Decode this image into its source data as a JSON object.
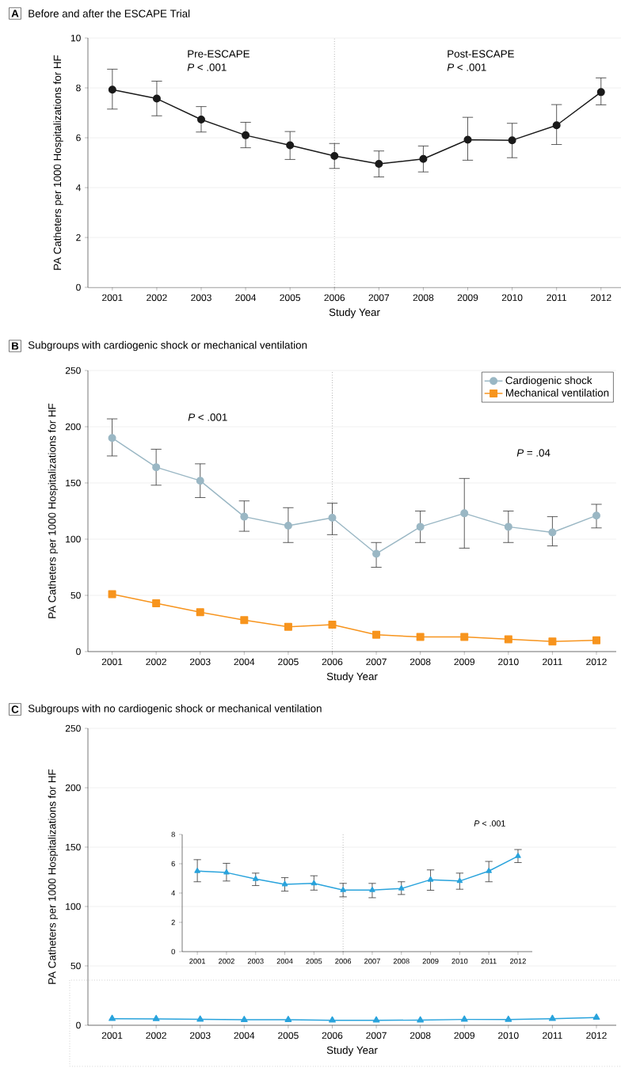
{
  "chart_data": [
    {
      "type": "line",
      "title": "Before and after the ESCAPE Trial",
      "xlabel": "Study Year",
      "ylabel": "PA Catheters per 1000 Hospitalizations for HF",
      "annotations": [
        "A",
        "Pre-ESCAPE",
        "*P* < .001",
        "Post-ESCAPE",
        "*P* < .001"
      ],
      "x": [
        2001,
        2002,
        2003,
        2004,
        2005,
        2006,
        2007,
        2008,
        2009,
        2010,
        2011,
        2012
      ],
      "xlim": [
        2000.45,
        2012.45
      ],
      "xticks": [
        2001,
        2002,
        2003,
        2004,
        2005,
        2006,
        2007,
        2008,
        2009,
        2010,
        2011,
        2012
      ],
      "ylim": [
        0,
        10
      ],
      "yticks": [
        0,
        2,
        4,
        6,
        8,
        10
      ],
      "grid": "y",
      "ref_lines": [
        {
          "axis": "x",
          "value": 2006,
          "line_style": "dotted"
        }
      ],
      "series": [
        {
          "color": "#1a1a1a",
          "marker": "circle",
          "values": [
            7.93,
            7.57,
            6.73,
            6.1,
            5.7,
            5.27,
            4.95,
            5.15,
            5.92,
            5.9,
            6.5,
            7.83
          ],
          "errors": [
            [
              7.15,
              8.75
            ],
            [
              6.88,
              8.27
            ],
            [
              6.23,
              7.25
            ],
            [
              5.6,
              6.62
            ],
            [
              5.13,
              6.25
            ],
            [
              4.77,
              5.77
            ],
            [
              4.43,
              5.47
            ],
            [
              4.63,
              5.67
            ],
            [
              5.1,
              6.82
            ],
            [
              5.2,
              6.58
            ],
            [
              5.73,
              7.33
            ],
            [
              7.32,
              8.4
            ]
          ]
        }
      ]
    },
    {
      "type": "line",
      "title": "Subgroups with cardiogenic shock or mechanical ventilation",
      "xlabel": "Study Year",
      "ylabel": "PA Catheters per 1000 Hospitalizations for HF",
      "annotations": [
        "B",
        "*P* < .001",
        "*P* = .04"
      ],
      "x": [
        2001,
        2002,
        2003,
        2004,
        2005,
        2006,
        2007,
        2008,
        2009,
        2010,
        2011,
        2012
      ],
      "xlim": [
        2000.45,
        2012.45
      ],
      "xticks": [
        2001,
        2002,
        2003,
        2004,
        2005,
        2006,
        2007,
        2008,
        2009,
        2010,
        2011,
        2012
      ],
      "ylim": [
        0,
        250
      ],
      "yticks": [
        0,
        50,
        100,
        150,
        200,
        250
      ],
      "grid": "y",
      "legend": "top right",
      "ref_lines": [
        {
          "axis": "x",
          "value": 2006,
          "line_style": "dotted"
        }
      ],
      "series": [
        {
          "name": "Cardiogenic shock",
          "color": "#9ab7c4",
          "marker": "circle",
          "values": [
            190,
            164,
            152,
            120,
            112,
            119,
            87,
            111,
            123,
            111,
            106,
            121
          ],
          "errors": [
            [
              174,
              207
            ],
            [
              148,
              180
            ],
            [
              137,
              167
            ],
            [
              107,
              134
            ],
            [
              97,
              128
            ],
            [
              104,
              132
            ],
            [
              75,
              97
            ],
            [
              97,
              125
            ],
            [
              92,
              154
            ],
            [
              97,
              125
            ],
            [
              94,
              120
            ],
            [
              110,
              131
            ]
          ]
        },
        {
          "name": "Mechanical ventilation",
          "color": "#f7941d",
          "marker": "square",
          "values": [
            51,
            43,
            35,
            28,
            22,
            24,
            15,
            13,
            13,
            11,
            9,
            10
          ]
        }
      ]
    },
    {
      "type": "line",
      "title": "Subgroups with no cardiogenic shock or mechanical ventilation",
      "xlabel": "Study Year",
      "ylabel": "PA Catheters per 1000 Hospitalizations for HF",
      "annotations": [
        "C"
      ],
      "x": [
        2001,
        2002,
        2003,
        2004,
        2005,
        2006,
        2007,
        2008,
        2009,
        2010,
        2011,
        2012
      ],
      "xlim": [
        2000.45,
        2012.45
      ],
      "xticks": [
        2001,
        2002,
        2003,
        2004,
        2005,
        2006,
        2007,
        2008,
        2009,
        2010,
        2011,
        2012
      ],
      "ylim": [
        0,
        250
      ],
      "yticks": [
        0,
        50,
        100,
        150,
        200,
        250
      ],
      "grid": "y",
      "series": [
        {
          "color": "#29a3dc",
          "marker": "triangle",
          "values": [
            5.5,
            5.4,
            4.96,
            4.6,
            4.66,
            4.2,
            4.2,
            4.31,
            4.91,
            4.82,
            5.5,
            6.52
          ]
        }
      ]
    },
    {
      "type": "line",
      "annotations": [
        "*P* < .001"
      ],
      "x": [
        2001,
        2002,
        2003,
        2004,
        2005,
        2006,
        2007,
        2008,
        2009,
        2010,
        2011,
        2012
      ],
      "xlim": [
        2000.48,
        2012.49
      ],
      "xticks": [
        2001,
        2002,
        2003,
        2004,
        2005,
        2006,
        2007,
        2008,
        2009,
        2010,
        2011,
        2012
      ],
      "ylim": [
        0,
        8
      ],
      "yticks": [
        0,
        2,
        4,
        6,
        8
      ],
      "ref_lines": [
        {
          "axis": "x",
          "value": 2006,
          "line_style": "dotted"
        }
      ],
      "series": [
        {
          "color": "#29a3dc",
          "marker": "triangle",
          "values": [
            5.5,
            5.4,
            4.96,
            4.6,
            4.66,
            4.2,
            4.2,
            4.31,
            4.91,
            4.82,
            5.5,
            6.52
          ],
          "errors": [
            [
              4.77,
              6.28
            ],
            [
              4.82,
              6.03
            ],
            [
              4.51,
              5.36
            ],
            [
              4.13,
              5.05
            ],
            [
              4.2,
              5.18
            ],
            [
              3.74,
              4.66
            ],
            [
              3.68,
              4.66
            ],
            [
              3.9,
              4.77
            ],
            [
              4.19,
              5.58
            ],
            [
              4.26,
              5.36
            ],
            [
              4.77,
              6.16
            ],
            [
              6.08,
              6.97
            ]
          ]
        }
      ]
    }
  ]
}
